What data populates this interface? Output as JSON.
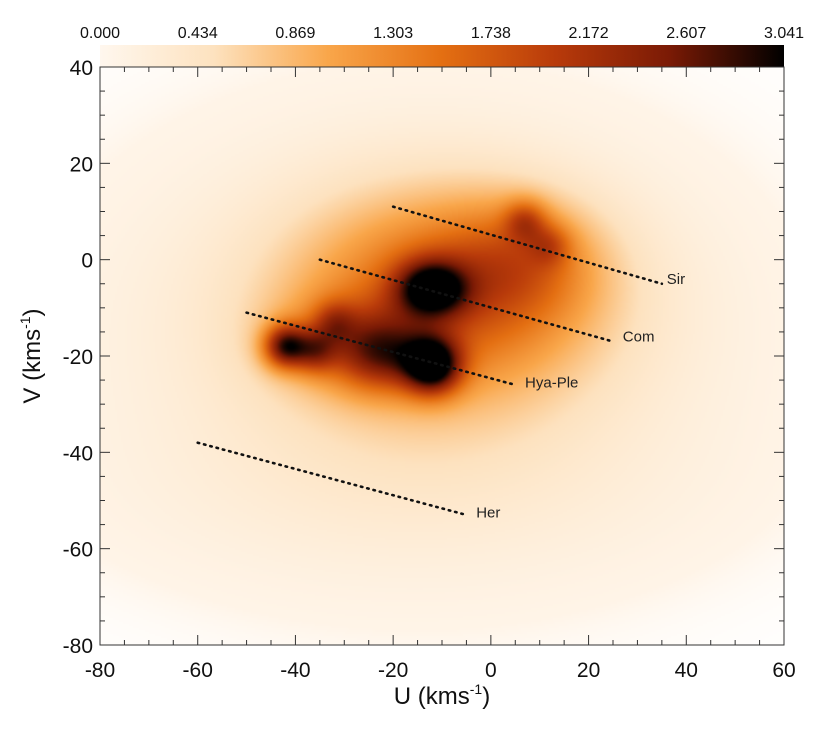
{
  "chart_data": {
    "type": "heatmap",
    "title": "",
    "xlabel": "U (kms",
    "xlabel_sup": "-1",
    "xlabel_end": ")",
    "ylabel": "V (kms",
    "ylabel_sup": "-1",
    "ylabel_end": ")",
    "xlim": [
      -80,
      60
    ],
    "ylim": [
      -80,
      40
    ],
    "xticks": [
      -80,
      -60,
      -40,
      -20,
      0,
      20,
      40,
      60
    ],
    "yticks": [
      -80,
      -60,
      -40,
      -20,
      0,
      20,
      40
    ],
    "grid": false,
    "colorbar": {
      "position": "top",
      "range": [
        0.0,
        3.041
      ],
      "ticks": [
        "0.000",
        "0.434",
        "0.869",
        "1.303",
        "1.738",
        "2.172",
        "2.607",
        "3.041"
      ],
      "colors": [
        "#fff7ee",
        "#fde2bf",
        "#f9a64a",
        "#e46f12",
        "#b83a0a",
        "#7a1a05",
        "#000000"
      ]
    },
    "density_components": [
      {
        "u": -15,
        "v": -18,
        "su": 40,
        "sv": 28,
        "amp": 0.16
      },
      {
        "u": -12,
        "v": -10,
        "su": 22,
        "sv": 16,
        "amp": 0.45
      },
      {
        "u": -5,
        "v": -5,
        "su": 18,
        "sv": 12,
        "amp": 0.35
      },
      {
        "u": 6,
        "v": 0,
        "su": 10,
        "sv": 8,
        "amp": 0.35
      },
      {
        "u": -28,
        "v": -17,
        "su": 10,
        "sv": 6,
        "amp": 0.45
      },
      {
        "u": -12,
        "v": -6,
        "su": 5,
        "sv": 4,
        "amp": 1.2
      },
      {
        "u": -12,
        "v": -22,
        "su": 4,
        "sv": 4,
        "amp": 1.4
      },
      {
        "u": -42,
        "v": -18,
        "su": 3,
        "sv": 3,
        "amp": 1.1
      },
      {
        "u": -36,
        "v": -19,
        "su": 3,
        "sv": 3,
        "amp": 0.6
      },
      {
        "u": -22,
        "v": -20,
        "su": 6,
        "sv": 5,
        "amp": 0.6
      },
      {
        "u": 7,
        "v": 8,
        "su": 3,
        "sv": 3,
        "amp": 0.5
      },
      {
        "u": 12,
        "v": 3,
        "su": 3,
        "sv": 3,
        "amp": 0.35
      },
      {
        "u": -32,
        "v": -13,
        "su": 3,
        "sv": 3,
        "amp": 0.4
      },
      {
        "u": -18,
        "v": -48,
        "su": 40,
        "sv": 12,
        "amp": 0.04
      }
    ],
    "lines": [
      {
        "name": "Sir",
        "x": [
          -20,
          35
        ],
        "y": [
          11,
          -5
        ]
      },
      {
        "name": "Com",
        "x": [
          -35,
          25
        ],
        "y": [
          0,
          -17
        ]
      },
      {
        "name": "Hya-Ple",
        "x": [
          -50,
          5
        ],
        "y": [
          -11,
          -26
        ]
      },
      {
        "name": "Her",
        "x": [
          -60,
          -5
        ],
        "y": [
          -38,
          -53
        ]
      }
    ],
    "annotations": [
      {
        "text": "Sir",
        "x": 36,
        "y": -4
      },
      {
        "text": "Com",
        "x": 27,
        "y": -16
      },
      {
        "text": "Hya-Ple",
        "x": 7,
        "y": -25.5
      },
      {
        "text": "Her",
        "x": -3,
        "y": -52.5
      }
    ]
  }
}
